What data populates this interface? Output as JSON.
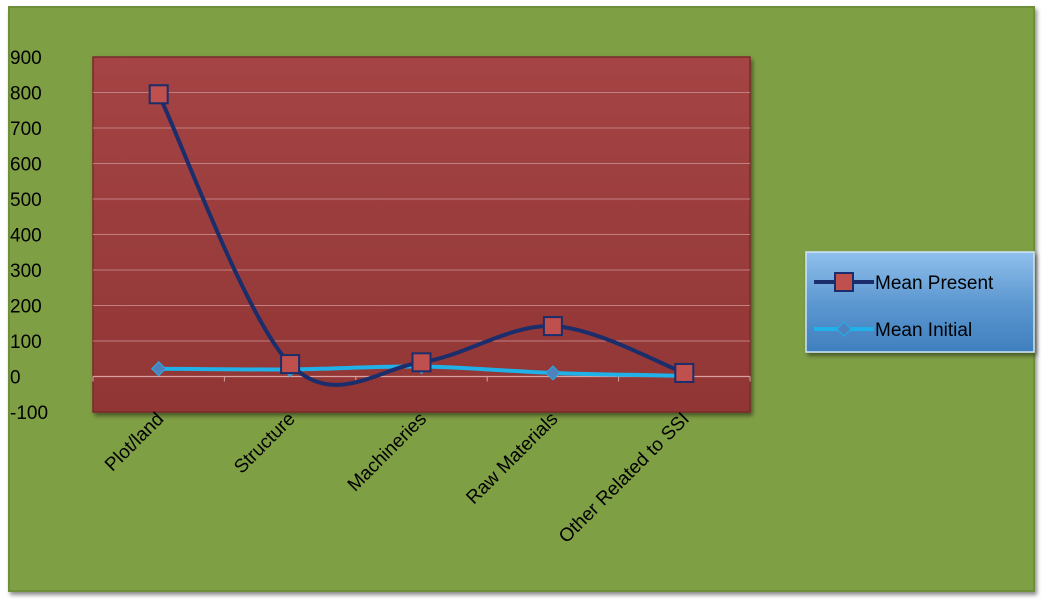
{
  "chart_data": {
    "type": "line",
    "categories": [
      "Plot/land",
      "Structure",
      "Machineries",
      "Raw Materials",
      "Other Related to SSI"
    ],
    "series": [
      {
        "name": "Mean  Present",
        "values": [
          795,
          35,
          40,
          142,
          10
        ],
        "color": "#1b2d6b",
        "marker": "square",
        "marker_fill": "#c0504d"
      },
      {
        "name": "Mean Initial",
        "values": [
          22,
          20,
          28,
          10,
          2
        ],
        "color": "#1fb1e8",
        "marker": "diamond",
        "marker_fill": "#4f81bd"
      }
    ],
    "y_ticks": [
      "900",
      "800",
      "700",
      "600",
      "500",
      "400",
      "300",
      "200",
      "100",
      "0",
      "-100"
    ],
    "ylim": [
      -100,
      900
    ],
    "grid": true,
    "smooth_lines": true,
    "legend_position": "right",
    "colors": {
      "background": "#7f9f44",
      "plot_area": "#9b3b3b",
      "gridline": "#c08080",
      "legend_fill": "#6fa6d8"
    }
  }
}
